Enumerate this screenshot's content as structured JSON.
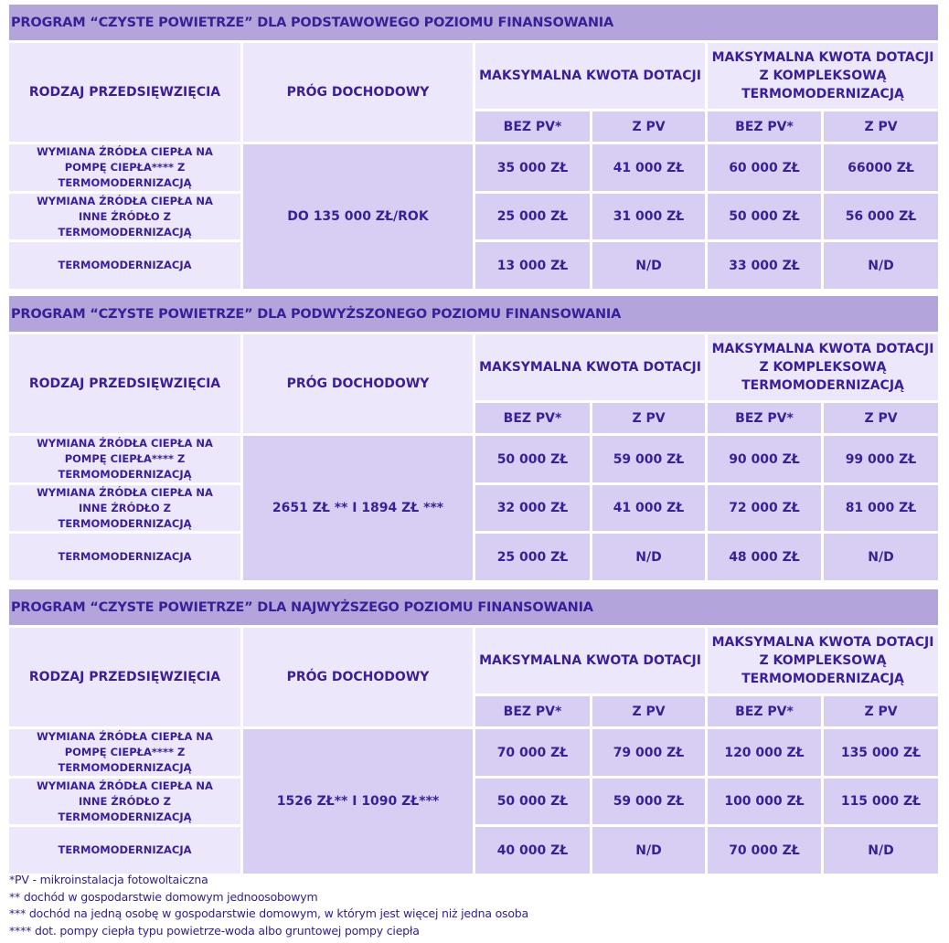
{
  "headers": {
    "rodzaj": "RODZAJ PRZEDSIĘWZIĘCIA",
    "prog": "PRÓG DOCHODOWY",
    "max": "MAKSYMALNA KWOTA DOTACJI",
    "max_kompleks": "MAKSYMALNA KWOTA DOTACJI Z KOMPLEKSOWĄ TERMOMODERNIZACJĄ",
    "bez_pv": "BEZ PV*",
    "z_pv": "Z PV"
  },
  "rows": [
    "WYMIANA ŹRÓDŁA CIEPŁA NA POMPĘ CIEPŁA**** Z TERMOMODERNIZACJĄ",
    "WYMIANA ŹRÓDŁA CIEPŁA NA INNE ŹRÓDŁO Z TERMOMODERNIZACJĄ",
    "TERMOMODERNIZACJA"
  ],
  "sections": [
    {
      "title": "PROGRAM “CZYSTE POWIETRZE” DLA PODSTAWOWEGO POZIOMU FINANSOWANIA",
      "threshold": "DO 135 000 ZŁ/ROK",
      "values": [
        [
          "35 000 ZŁ",
          "41 000 ZŁ",
          "60 000 ZŁ",
          "66000 ZŁ"
        ],
        [
          "25 000 ZŁ",
          "31 000 ZŁ",
          "50 000 ZŁ",
          "56 000 ZŁ"
        ],
        [
          "13 000 ZŁ",
          "N/D",
          "33 000 ZŁ",
          "N/D"
        ]
      ]
    },
    {
      "title": "PROGRAM “CZYSTE POWIETRZE” DLA PODWYŻSZONEGO POZIOMU FINANSOWANIA",
      "threshold": "2651 ZŁ ** I 1894 ZŁ ***",
      "values": [
        [
          "50 000 ZŁ",
          "59 000 ZŁ",
          "90 000 ZŁ",
          "99 000 ZŁ"
        ],
        [
          "32 000 ZŁ",
          "41 000 ZŁ",
          "72 000 ZŁ",
          "81 000 ZŁ"
        ],
        [
          "25 000 ZŁ",
          "N/D",
          "48 000 ZŁ",
          "N/D"
        ]
      ]
    },
    {
      "title": "PROGRAM “CZYSTE POWIETRZE” DLA NAJWYŻSZEGO POZIOMU FINANSOWANIA",
      "threshold": "1526 ZŁ** I 1090 ZŁ***",
      "values": [
        [
          "70 000 ZŁ",
          "79 000 ZŁ",
          "120 000 ZŁ",
          "135 000 ZŁ"
        ],
        [
          "50 000 ZŁ",
          "59 000 ZŁ",
          "100 000 ZŁ",
          "115 000 ZŁ"
        ],
        [
          "40 000 ZŁ",
          "N/D",
          "70 000 ZŁ",
          "N/D"
        ]
      ]
    }
  ],
  "footnotes": [
    "*PV - mikroinstalacja fotowoltaiczna",
    "** dochód w gospodarstwie domowym jednoosobowym",
    "*** dochód na jedną osobę w gospodarstwie domowym, w którym jest więcej niż jedna osoba",
    "**** dot. pompy ciepła typu powietrze-woda albo gruntowej pompy ciepła"
  ],
  "colors": {
    "title_bar": "#b3a5dc",
    "header_light": "#ece7fb",
    "cell": "#d8cef3",
    "text": "#3a1f96"
  }
}
